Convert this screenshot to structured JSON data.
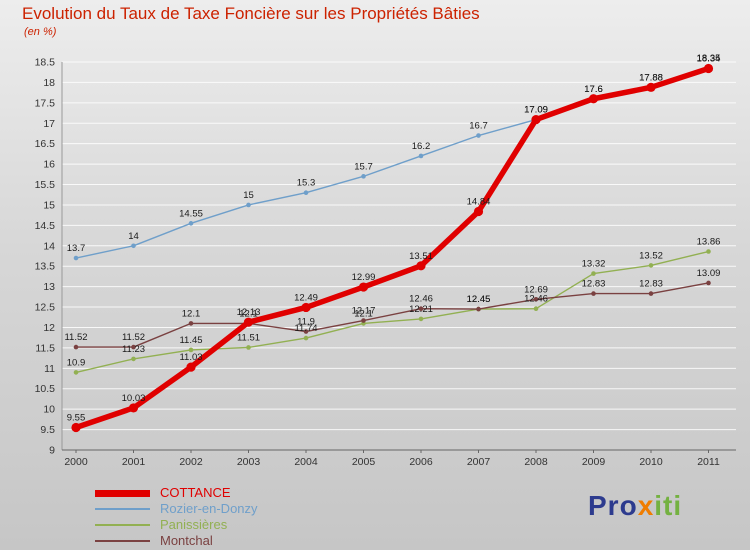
{
  "title": "Evolution du Taux de Taxe Foncière sur les Propriétés Bâties",
  "subtitle": "(en %)",
  "logo": {
    "pro": "Pro",
    "x": "x",
    "iti": "iti"
  },
  "chart_data": {
    "type": "line",
    "title": "Evolution du Taux de Taxe Foncière sur les Propriétés Bâties",
    "subtitle": "(en %)",
    "x": [
      2000,
      2001,
      2002,
      2003,
      2004,
      2005,
      2006,
      2007,
      2008,
      2009,
      2010,
      2011
    ],
    "series": [
      {
        "name": "COTTANCE",
        "color": "#e00000",
        "line_width": 5.5,
        "marker_radius": 4.6,
        "values": [
          9.55,
          10.03,
          11.03,
          12.13,
          12.49,
          12.99,
          13.51,
          14.84,
          17.09,
          17.6,
          17.88,
          18.34
        ]
      },
      {
        "name": "Rozier-en-Donzy",
        "color": "#6f9fca",
        "line_width": 1.4,
        "marker_radius": 2.3,
        "values": [
          13.7,
          14,
          14.55,
          15,
          15.3,
          15.7,
          16.2,
          16.7,
          17.09,
          17.6,
          17.88,
          18.35
        ]
      },
      {
        "name": "Panissières",
        "color": "#92b052",
        "line_width": 1.4,
        "marker_radius": 2.3,
        "values": [
          10.9,
          11.23,
          11.45,
          11.51,
          11.74,
          12.1,
          12.21,
          12.45,
          12.46,
          13.32,
          13.52,
          13.86
        ]
      },
      {
        "name": "Montchal",
        "color": "#7a4141",
        "line_width": 1.4,
        "marker_radius": 2.3,
        "values": [
          11.52,
          11.52,
          12.1,
          12.1,
          11.9,
          12.17,
          12.46,
          12.45,
          12.69,
          12.83,
          12.83,
          13.09
        ]
      }
    ],
    "ylim": [
      9,
      18.5
    ],
    "ytick_step": 0.5,
    "grid": true,
    "point_labels": true,
    "legend_position": "bottom-left"
  }
}
